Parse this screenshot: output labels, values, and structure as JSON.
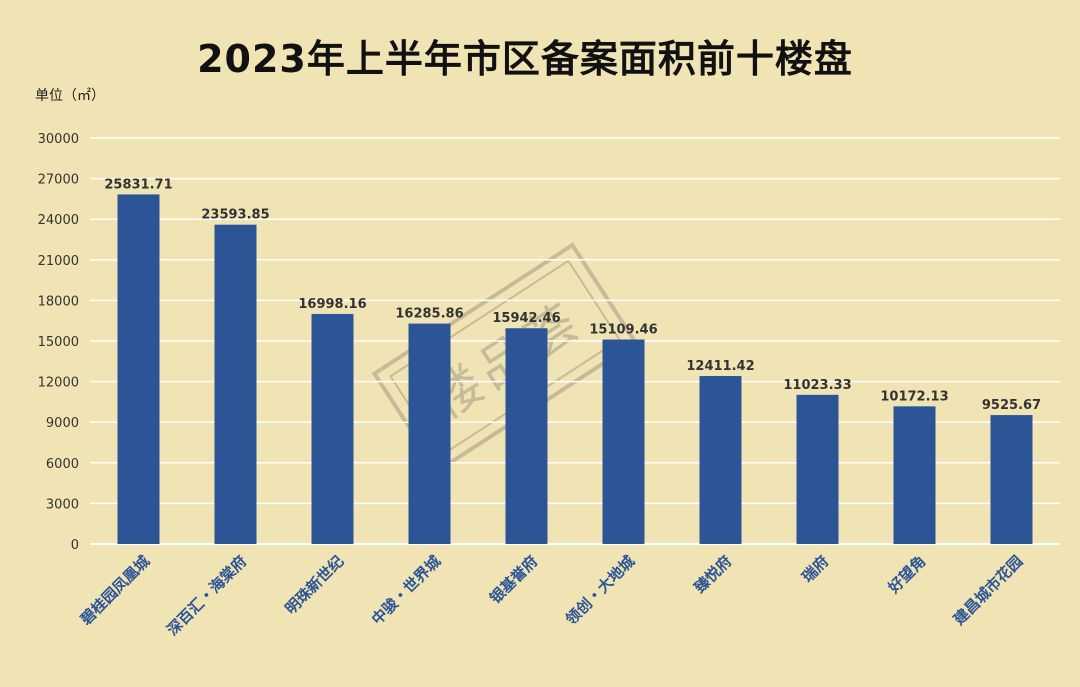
{
  "chart_data": {
    "type": "bar",
    "title": "2023年上半年市区备案面积前十楼盘",
    "unit_label": "单位（㎡）",
    "categories": [
      "碧桂园凤凰城",
      "深百汇・海棠府",
      "明珠新世纪",
      "中骏・世界城",
      "银基誉府",
      "领创・大地城",
      "臻悦府",
      "瑞府",
      "好望角",
      "建昌城市花园"
    ],
    "values": [
      25831.71,
      23593.85,
      16998.16,
      16285.86,
      15942.46,
      15109.46,
      12411.42,
      11023.33,
      10172.13,
      9525.67
    ],
    "value_labels": [
      "25831.71",
      "23593.85",
      "16998.16",
      "16285.86",
      "15942.46",
      "15109.46",
      "12411.42",
      "11023.33",
      "10172.13",
      "9525.67"
    ],
    "y_ticks": [
      "0",
      "3000",
      "6000",
      "9000",
      "12000",
      "15000",
      "18000",
      "21000",
      "24000",
      "27000",
      "30000"
    ],
    "ylim": [
      0,
      30000
    ],
    "grid": true,
    "legend": "none",
    "bar_color": "#2c5597",
    "background_color": "#f1e4b4",
    "gridline_color": "#ffffff",
    "category_label_color": "#2c5597",
    "watermark_text": "楼品荟"
  }
}
